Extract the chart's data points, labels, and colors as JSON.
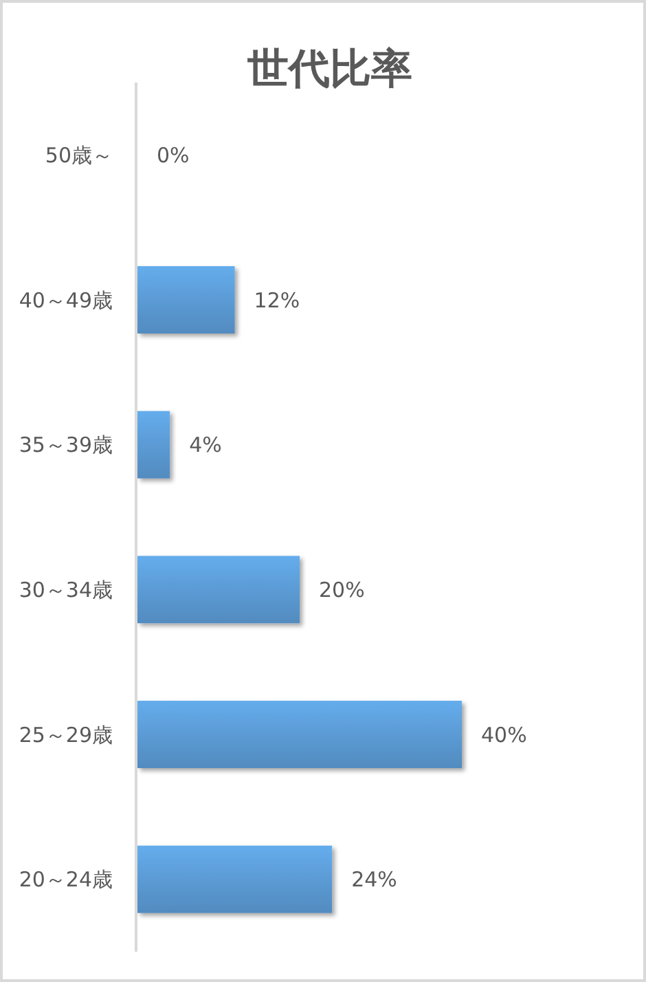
{
  "chart_data": {
    "type": "bar",
    "orientation": "horizontal",
    "title": "世代比率",
    "categories": [
      "50歳～",
      "40～49歳",
      "35～39歳",
      "30～34歳",
      "25～29歳",
      "20～24歳"
    ],
    "values": [
      0,
      12,
      4,
      20,
      40,
      24
    ],
    "value_labels": [
      "0%",
      "12%",
      "4%",
      "20%",
      "40%",
      "24%"
    ],
    "color": "#5b9bd5",
    "tick_labels": "y"
  }
}
